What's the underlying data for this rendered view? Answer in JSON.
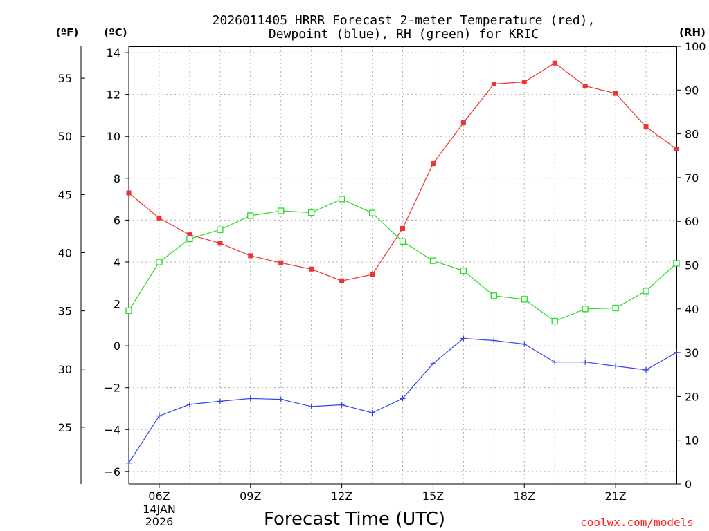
{
  "chart_data": {
    "type": "line",
    "title_lines": [
      "2026011405 HRRR Forecast 2-meter Temperature (red),",
      "Dewpoint (blue), RH (green) for KRIC"
    ],
    "units": {
      "fahrenheit": "(ºF)",
      "celsius": "(ºC)",
      "rh": "(RH)"
    },
    "xlabel": "Forecast Time (UTC)",
    "credit": "coolwx.com/models",
    "x_hours": [
      5,
      6,
      7,
      8,
      9,
      10,
      11,
      12,
      13,
      14,
      15,
      16,
      17,
      18,
      19,
      20,
      21,
      22,
      23
    ],
    "x_ticks": [
      {
        "hour": 6,
        "label": "06Z",
        "date_line1": "14JAN",
        "date_line2": "2026"
      },
      {
        "hour": 9,
        "label": "09Z"
      },
      {
        "hour": 12,
        "label": "12Z"
      },
      {
        "hour": 15,
        "label": "15Z"
      },
      {
        "hour": 18,
        "label": "18Z"
      },
      {
        "hour": 21,
        "label": "21Z"
      }
    ],
    "x_range": [
      5,
      23
    ],
    "celsius_axis": {
      "range": [
        -6.6,
        14.3
      ],
      "ticks": [
        "14",
        "12",
        "10",
        "8",
        "6",
        "4",
        "2",
        "0",
        "−2",
        "−4",
        "−6"
      ],
      "tick_values": [
        14,
        12,
        10,
        8,
        6,
        4,
        2,
        0,
        -2,
        -4,
        -6
      ]
    },
    "fahrenheit_axis": {
      "ticks": [
        "55",
        "50",
        "45",
        "40",
        "35",
        "30",
        "25"
      ],
      "tick_values": [
        55,
        50,
        45,
        40,
        35,
        30,
        25
      ]
    },
    "rh_axis": {
      "range": [
        0,
        100
      ],
      "ticks": [
        "100",
        "90",
        "80",
        "70",
        "60",
        "50",
        "40",
        "30",
        "20",
        "10",
        "0"
      ],
      "tick_values": [
        100,
        90,
        80,
        70,
        60,
        50,
        40,
        30,
        20,
        10,
        0
      ]
    },
    "series": [
      {
        "name": "Temperature",
        "color": "#ee3333",
        "marker": "filled-square",
        "axis": "celsius",
        "values": [
          7.3,
          6.1,
          5.3,
          4.9,
          4.3,
          3.96,
          3.66,
          3.1,
          3.4,
          5.6,
          8.7,
          10.65,
          12.5,
          12.6,
          13.5,
          12.4,
          12.05,
          10.45,
          9.4
        ]
      },
      {
        "name": "Dewpoint",
        "color": "#3344ee",
        "marker": "plus",
        "axis": "celsius",
        "values": [
          -5.6,
          -3.35,
          -2.8,
          -2.65,
          -2.52,
          -2.56,
          -2.9,
          -2.82,
          -3.2,
          -2.52,
          -0.85,
          0.35,
          0.25,
          0.08,
          -0.78,
          -0.78,
          -0.97,
          -1.15,
          -0.32
        ]
      },
      {
        "name": "RH",
        "color": "#22dd22",
        "marker": "open-square",
        "axis": "rh",
        "values": [
          39.6,
          50.7,
          56.0,
          58.1,
          61.3,
          62.4,
          62.0,
          65.1,
          61.9,
          55.4,
          51.0,
          48.7,
          43.0,
          42.2,
          37.2,
          40.0,
          40.2,
          44.1,
          50.4
        ]
      }
    ]
  }
}
